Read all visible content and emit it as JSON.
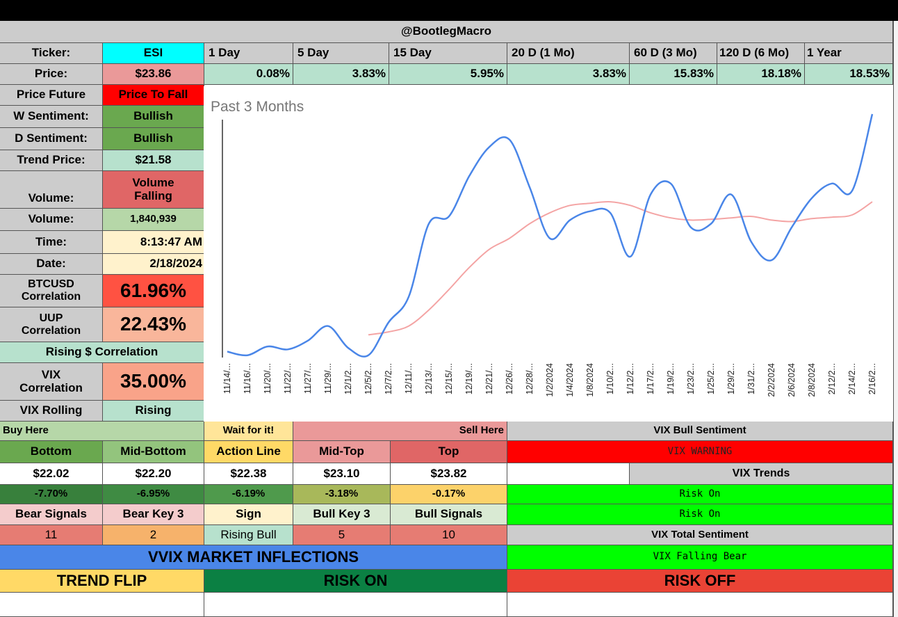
{
  "header": {
    "title": "@BootlegMacro"
  },
  "ticker": {
    "label": "Ticker:",
    "value": "ESI"
  },
  "periods": [
    "1 Day",
    "5 Day",
    "15 Day",
    "20 D (1 Mo)",
    "60 D (3 Mo)",
    "120 D (6 Mo)",
    "1 Year"
  ],
  "price": {
    "label": "Price:",
    "value": "$23.86"
  },
  "returns": [
    "0.08%",
    "3.83%",
    "5.95%",
    "3.83%",
    "15.83%",
    "18.18%",
    "18.53%"
  ],
  "left_panel": {
    "price_future": {
      "label": "Price Future",
      "value": "Price To Fall"
    },
    "w_sentiment": {
      "label": "W Sentiment:",
      "value": "Bullish"
    },
    "d_sentiment": {
      "label": "D Sentiment:",
      "value": "Bullish"
    },
    "trend_price": {
      "label": "Trend Price:",
      "value": "$21.58"
    },
    "volume_status": {
      "label": "Volume:",
      "value": "Volume Falling"
    },
    "volume": {
      "label": "Volume:",
      "value": "1,840,939"
    },
    "time": {
      "label": "Time:",
      "value": "8:13:47 AM"
    },
    "date": {
      "label": "Date:",
      "value": "2/18/2024"
    },
    "btc_corr": {
      "label": "BTCUSD Correlation",
      "value": "61.96%"
    },
    "uup_corr": {
      "label": "UUP Correlation",
      "value": "22.43%"
    },
    "rising_corr": {
      "label": "Rising $ Correlation"
    },
    "vix_corr": {
      "label": "VIX Correlation",
      "value": "35.00%"
    },
    "vix_rolling": {
      "label": "VIX Rolling",
      "value": "Rising"
    }
  },
  "chart_data": {
    "type": "line",
    "title": "Past 3 Months",
    "x": [
      "11/14/...",
      "11/16/...",
      "11/20/...",
      "11/22/...",
      "11/27/...",
      "11/29/...",
      "12/1/2...",
      "12/5/2...",
      "12/7/2...",
      "12/11/...",
      "12/13/...",
      "12/15/...",
      "12/19/...",
      "12/21/...",
      "12/26/...",
      "12/28/...",
      "1/2/2024",
      "1/4/2024",
      "1/8/2024",
      "1/10/2...",
      "1/12/2...",
      "1/17/2...",
      "1/19/2...",
      "1/23/2...",
      "1/25/2...",
      "1/29/2...",
      "1/31/2...",
      "2/2/2024",
      "2/6/2024",
      "2/8/2024",
      "2/12/2...",
      "2/14/2...",
      "2/16/2..."
    ],
    "series": [
      {
        "color": "#4a86e8",
        "values": [
          20.55,
          20.5,
          20.62,
          20.58,
          20.7,
          20.9,
          20.6,
          20.5,
          20.95,
          21.3,
          22.3,
          22.4,
          22.95,
          23.35,
          23.45,
          22.8,
          22.1,
          22.35,
          22.47,
          22.45,
          21.85,
          22.7,
          22.85,
          22.25,
          22.3,
          22.7,
          22.05,
          21.8,
          22.25,
          22.65,
          22.85,
          22.75,
          23.8
        ]
      },
      {
        "color": "#f4a4a4",
        "values": [
          null,
          null,
          null,
          null,
          null,
          null,
          null,
          20.78,
          20.82,
          20.9,
          21.12,
          21.4,
          21.7,
          21.95,
          22.1,
          22.3,
          22.45,
          22.55,
          22.58,
          22.6,
          22.55,
          22.45,
          22.38,
          22.35,
          22.36,
          22.38,
          22.4,
          22.35,
          22.33,
          22.37,
          22.39,
          22.42,
          22.6
        ]
      }
    ],
    "ylim": [
      20.45,
      23.8
    ]
  },
  "levels": {
    "buy_label": "Buy Here",
    "wait_label": "Wait for it!",
    "sell_label": "Sell Here",
    "headers": [
      "Bottom",
      "Mid-Bottom",
      "Action Line",
      "Mid-Top",
      "Top"
    ],
    "prices": [
      "$22.02",
      "$22.20",
      "$22.38",
      "$23.10",
      "$23.82"
    ],
    "pcts": [
      "-7.70%",
      "-6.95%",
      "-6.19%",
      "-3.18%",
      "-0.17%"
    ]
  },
  "signals": {
    "headers": [
      "Bear Signals",
      "Bear Key 3",
      "Sign",
      "Bull Key 3",
      "Bull Signals"
    ],
    "values": [
      "11",
      "2",
      "Rising Bull",
      "5",
      "10"
    ]
  },
  "vix": {
    "bull_sentiment": "VIX Bull Sentiment",
    "warning": "VIX WARNING",
    "trends_label": "VIX Trends",
    "trend1": "Risk On",
    "trend2": "Risk On",
    "total_label": "VIX Total Sentiment",
    "total_value": "VIX Falling Bear"
  },
  "inflections": {
    "title": "VVIX MARKET INFLECTIONS",
    "trend_flip": "TREND FLIP",
    "risk_on": "RISK ON",
    "risk_off": "RISK OFF"
  },
  "colors": {
    "header_gray": "#cccccc",
    "cyan": "#00ffff",
    "pink": "#ea9999",
    "mint": "#b7e1cd",
    "red": "#ff0000",
    "green": "#6aa84f",
    "light_green": "#b6d7a8",
    "cream": "#fff2cc",
    "bright_red": "#ff5242",
    "salmon": "#f9b69b",
    "lime": "#00ff00",
    "blue": "#4a86e8",
    "dark_green": "#0b8043",
    "yellow": "#ffd966",
    "orange_red": "#ea4335"
  }
}
